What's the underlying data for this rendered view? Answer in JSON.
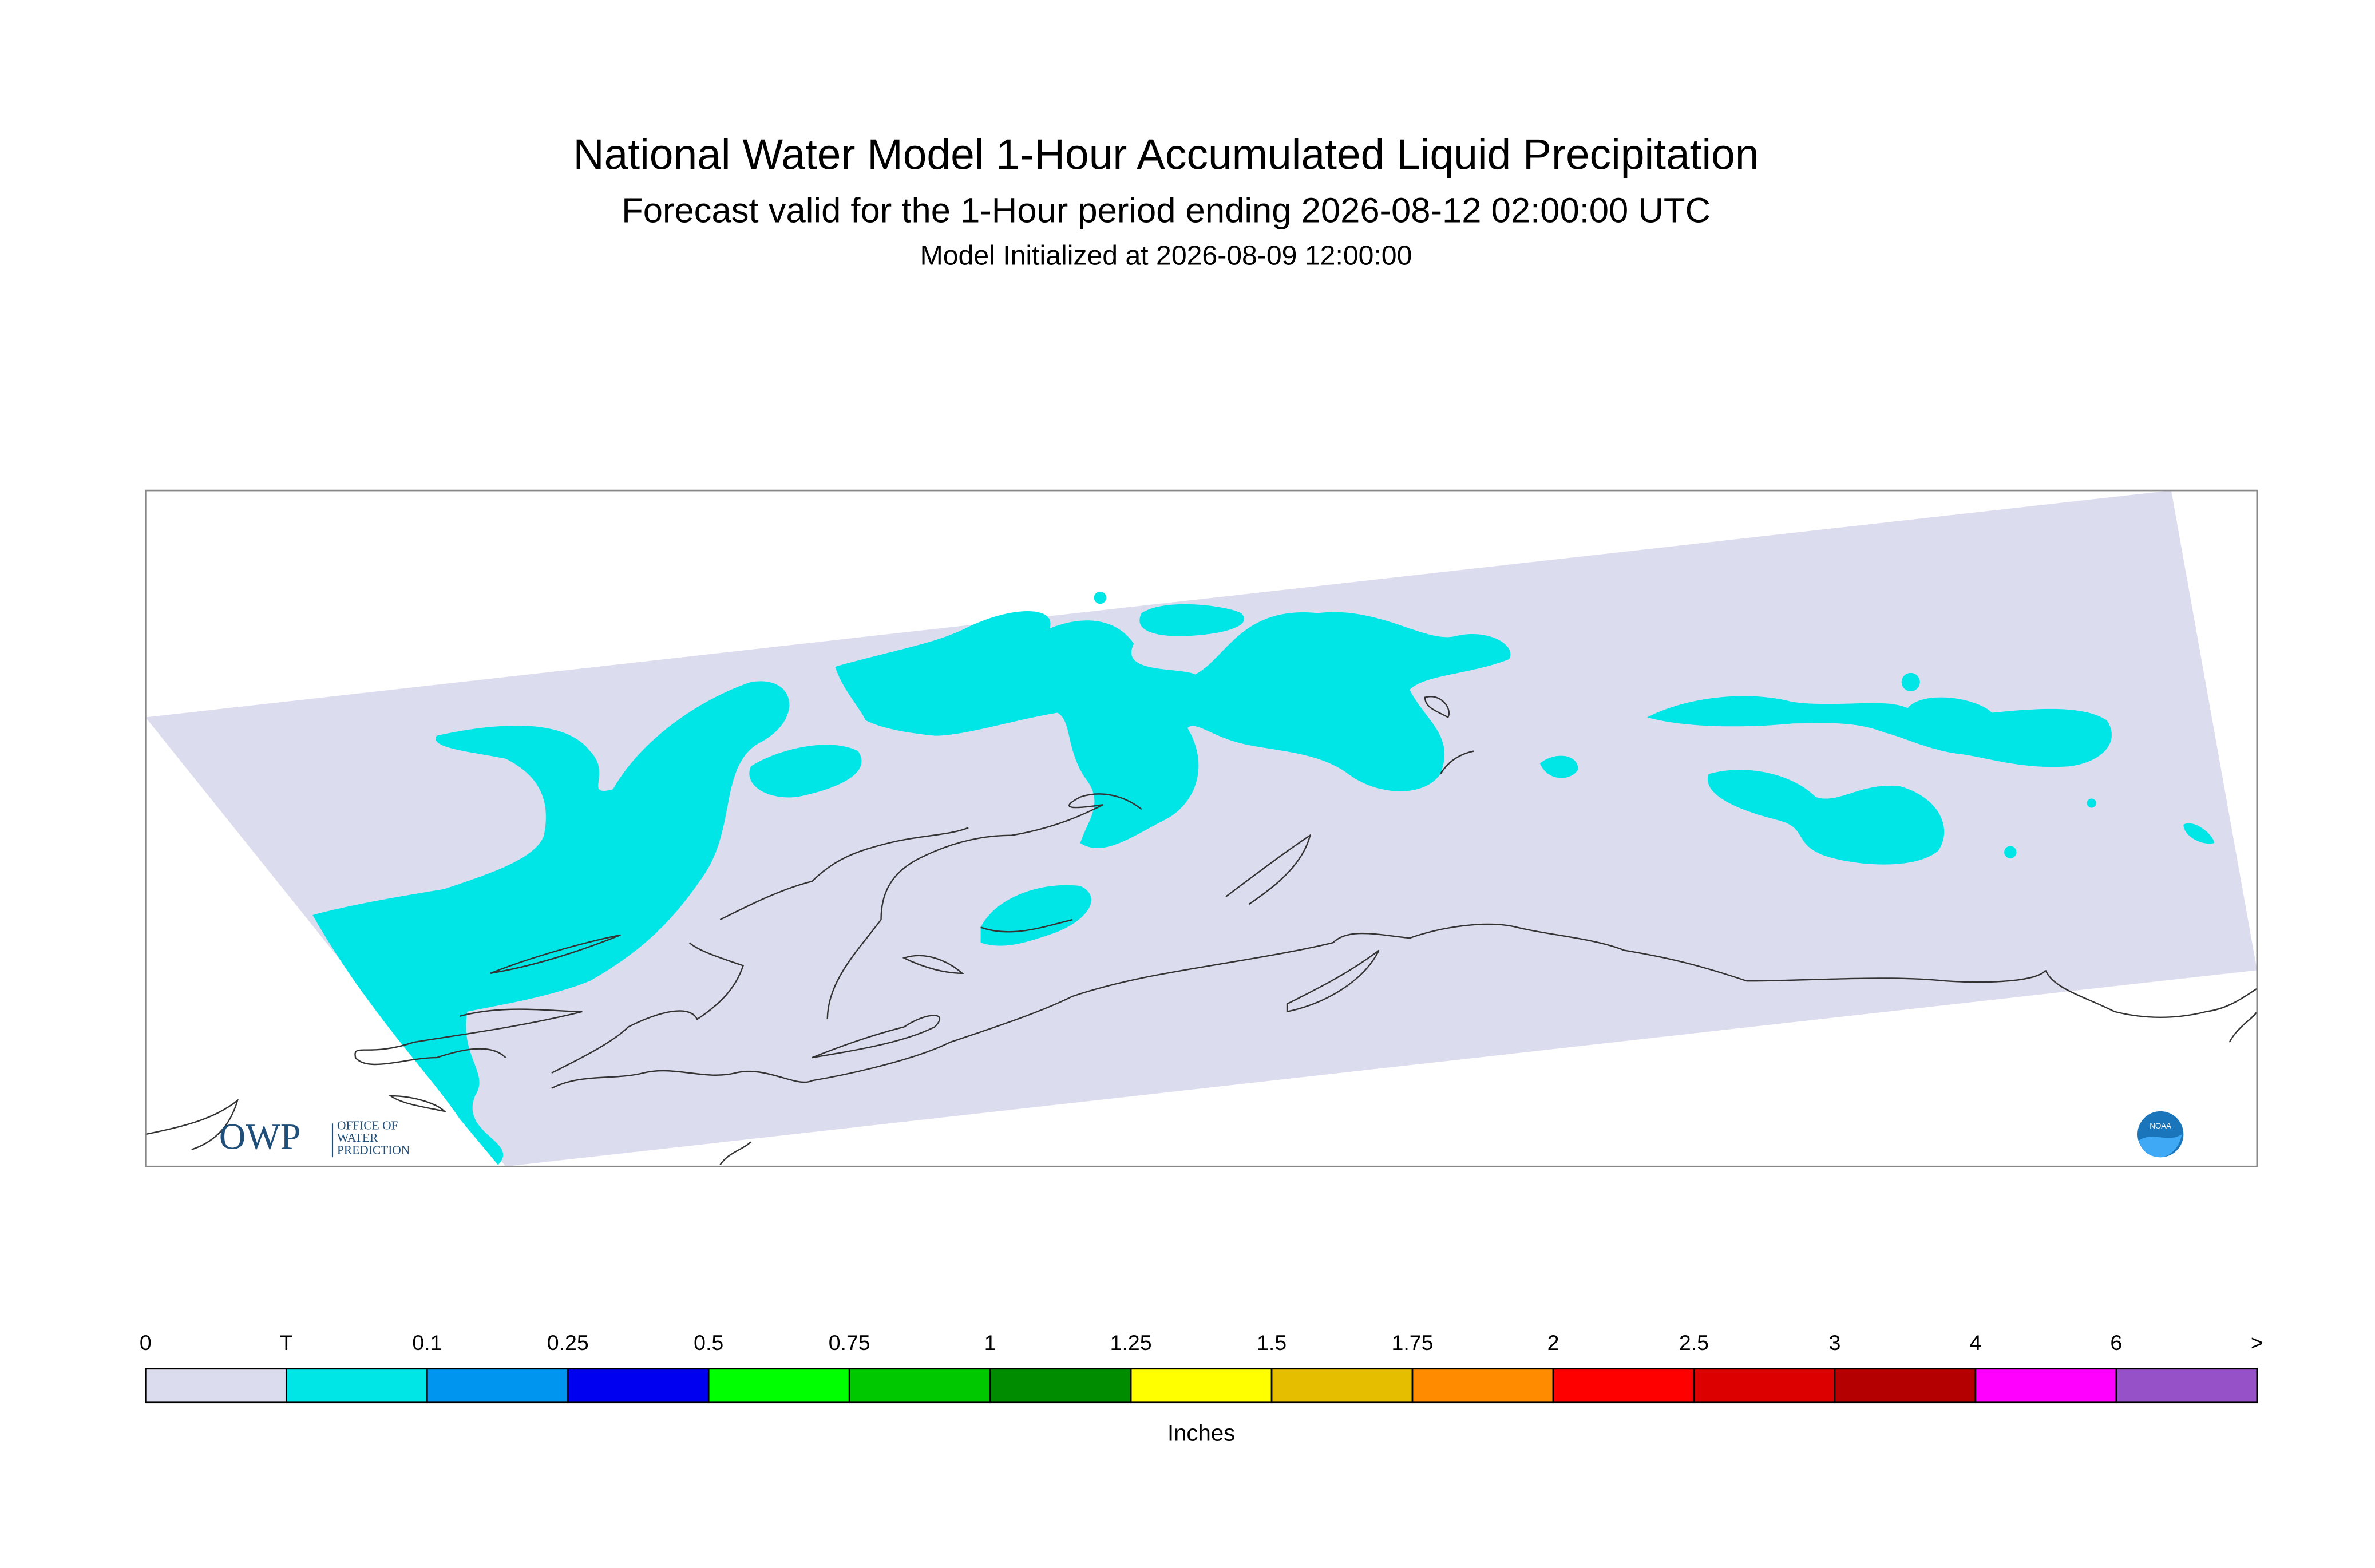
{
  "header": {
    "title": "National Water Model 1-Hour Accumulated Liquid Precipitation",
    "subtitle": "Forecast valid for the 1-Hour period ending 2026-08-12 02:00:00 UTC",
    "initialized": "Model Initialized at 2026-08-09 12:00:00"
  },
  "legend": {
    "labels": [
      "0",
      "T",
      "0.1",
      "0.25",
      "0.5",
      "0.75",
      "1",
      "1.25",
      "1.5",
      "1.75",
      "2",
      "2.5",
      "3",
      "4",
      "6",
      ">"
    ],
    "colors": [
      "#dcdcef",
      "#00e6e6",
      "#0096f0",
      "#0000f0",
      "#00ff00",
      "#00c800",
      "#008c00",
      "#ffff00",
      "#e6be00",
      "#ff8c00",
      "#ff0000",
      "#dc0000",
      "#b40000",
      "#ff00ff",
      "#9650c8"
    ],
    "unit": "Inches"
  },
  "logos": {
    "owp": "OWP",
    "owp_line1": "OFFICE OF",
    "owp_line2": "WATER",
    "owp_line3": "PREDICTION",
    "noaa": "NOAA"
  }
}
